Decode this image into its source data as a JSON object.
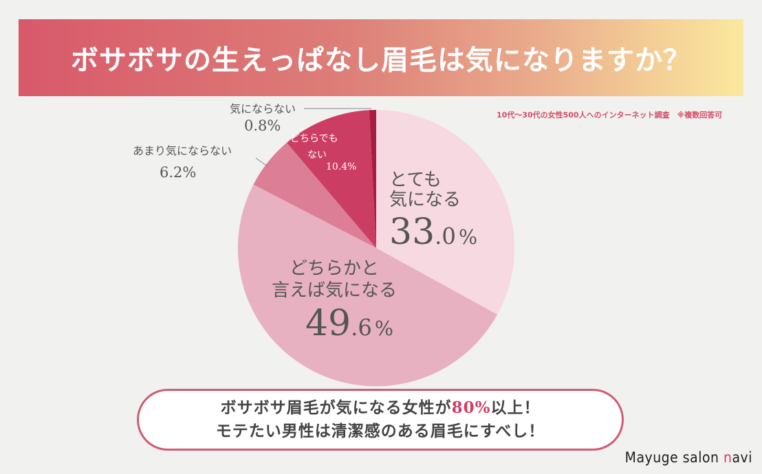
{
  "header": {
    "title": "ボサボサの生えっぱなし眉毛は気になりますか？"
  },
  "survey_note": "10代〜30代の女性500人へのインターネット調査　※複数回答可",
  "chart_data": {
    "type": "pie",
    "title": "ボサボサの生えっぱなし眉毛は気になりますか？",
    "unit": "%",
    "slices": [
      {
        "label_lines": [
          "とても",
          "気になる"
        ],
        "value": 33.0,
        "value_int": "33",
        "value_dec": ".0",
        "color": "#f7d9e1"
      },
      {
        "label_lines": [
          "どちらかと",
          "言えば気になる"
        ],
        "value": 49.6,
        "value_int": "49",
        "value_dec": ".6",
        "color": "#e8b1c1"
      },
      {
        "label_lines": [
          "あまり気にならない"
        ],
        "value": 6.2,
        "value_text": "6.2%",
        "color": "#dc7e96"
      },
      {
        "label_lines": [
          "どちらでも",
          "ない"
        ],
        "value": 10.4,
        "value_text": "10.4%",
        "color": "#cc3d64"
      },
      {
        "label_lines": [
          "気にならない"
        ],
        "value": 0.8,
        "value_text": "0.8%",
        "color": "#a81d44"
      }
    ]
  },
  "callout": {
    "line1_pre": "ボサボサ眉毛が気になる女性が",
    "line1_highlight": "80%",
    "line1_post": "以上！",
    "line2": "モテたい男性は清潔感のある眉毛にすべし！"
  },
  "brand": {
    "main": "Mayuge salon ",
    "accent": "n",
    "tail": "avi"
  },
  "colors": {
    "accent": "#d23d66",
    "callout_border": "#cf5c71"
  }
}
